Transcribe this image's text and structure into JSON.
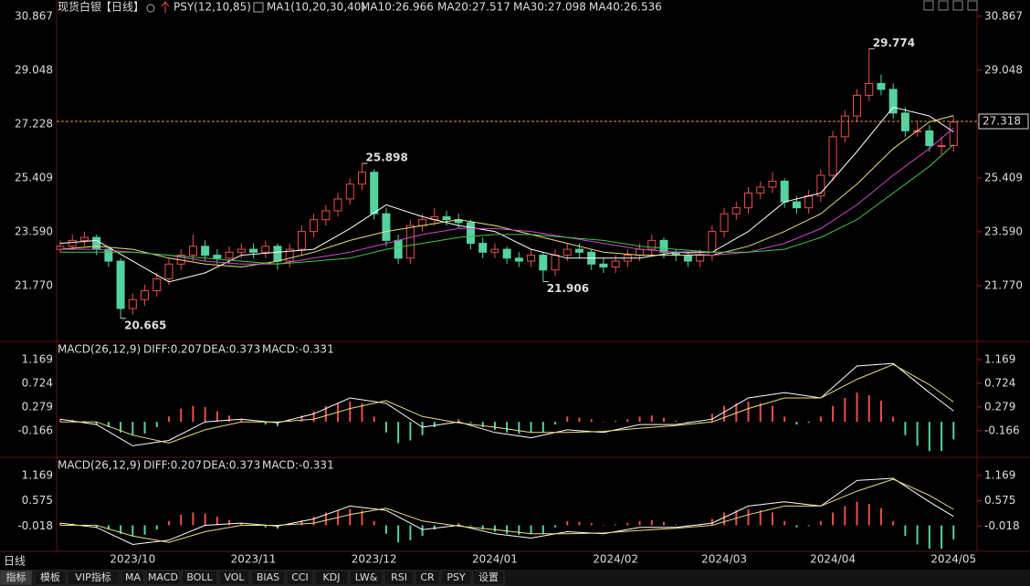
{
  "chart_data": [
    {
      "type": "candlestick",
      "symbol": "现货白银",
      "period_label": "【日线】",
      "indicator": "PSY(12,10,85)",
      "ma_label": "MA1(10,20,30,40)",
      "categories": [
        null,
        null,
        null,
        null,
        null,
        null,
        "2023/10",
        null,
        null,
        null,
        null,
        null,
        null,
        null,
        null,
        null,
        "2023/11",
        null,
        null,
        null,
        null,
        null,
        null,
        null,
        null,
        null,
        "2023/12",
        null,
        null,
        null,
        null,
        null,
        null,
        null,
        null,
        null,
        "2024/01",
        null,
        null,
        null,
        null,
        null,
        null,
        null,
        null,
        null,
        "2024/02",
        null,
        null,
        null,
        null,
        null,
        null,
        null,
        null,
        "2024/03",
        null,
        null,
        null,
        null,
        null,
        null,
        null,
        null,
        "2024/04",
        null,
        null,
        null,
        null,
        null,
        null,
        null,
        null,
        null,
        "2024/05"
      ],
      "ohlc": [
        [
          23.0,
          23.3,
          22.9,
          23.1
        ],
        [
          23.1,
          23.5,
          23.0,
          23.3
        ],
        [
          23.3,
          23.6,
          23.1,
          23.4
        ],
        [
          23.4,
          23.5,
          22.8,
          23.0
        ],
        [
          23.0,
          23.1,
          22.4,
          22.6
        ],
        [
          22.6,
          22.7,
          20.665,
          21.0
        ],
        [
          21.0,
          21.5,
          20.8,
          21.3
        ],
        [
          21.3,
          21.8,
          21.1,
          21.6
        ],
        [
          21.6,
          22.2,
          21.4,
          22.0
        ],
        [
          22.0,
          22.7,
          21.8,
          22.5
        ],
        [
          22.5,
          23.0,
          22.3,
          22.8
        ],
        [
          22.8,
          23.5,
          22.6,
          23.1
        ],
        [
          23.1,
          23.3,
          22.6,
          22.8
        ],
        [
          22.8,
          23.0,
          22.5,
          22.7
        ],
        [
          22.7,
          23.1,
          22.5,
          22.9
        ],
        [
          22.9,
          23.2,
          22.7,
          23.0
        ],
        [
          23.0,
          23.2,
          22.7,
          22.9
        ],
        [
          22.9,
          23.3,
          22.7,
          23.1
        ],
        [
          23.1,
          23.2,
          22.3,
          22.6
        ],
        [
          22.6,
          23.2,
          22.4,
          23.0
        ],
        [
          23.0,
          23.8,
          22.8,
          23.6
        ],
        [
          23.6,
          24.2,
          23.4,
          24.0
        ],
        [
          24.0,
          24.5,
          23.8,
          24.3
        ],
        [
          24.3,
          24.9,
          24.1,
          24.7
        ],
        [
          24.7,
          25.4,
          24.5,
          25.2
        ],
        [
          25.2,
          25.898,
          25.0,
          25.6
        ],
        [
          25.6,
          25.7,
          24.0,
          24.2
        ],
        [
          24.2,
          24.4,
          23.1,
          23.3
        ],
        [
          23.3,
          23.5,
          22.5,
          22.7
        ],
        [
          22.7,
          24.0,
          22.5,
          23.8
        ],
        [
          23.8,
          24.2,
          23.6,
          24.0
        ],
        [
          24.0,
          24.4,
          23.8,
          24.1
        ],
        [
          24.1,
          24.3,
          23.8,
          24.0
        ],
        [
          24.0,
          24.2,
          23.7,
          23.9
        ],
        [
          23.9,
          24.0,
          23.0,
          23.2
        ],
        [
          23.2,
          23.4,
          22.7,
          22.9
        ],
        [
          22.9,
          23.2,
          22.7,
          23.0
        ],
        [
          23.0,
          23.1,
          22.5,
          22.7
        ],
        [
          22.7,
          22.9,
          22.4,
          22.6
        ],
        [
          22.6,
          23.0,
          22.4,
          22.8
        ],
        [
          22.8,
          22.9,
          21.906,
          22.3
        ],
        [
          22.3,
          23.0,
          22.1,
          22.8
        ],
        [
          22.8,
          23.2,
          22.6,
          23.0
        ],
        [
          23.0,
          23.2,
          22.7,
          22.9
        ],
        [
          22.9,
          23.0,
          22.3,
          22.5
        ],
        [
          22.5,
          22.7,
          22.2,
          22.4
        ],
        [
          22.4,
          22.8,
          22.2,
          22.6
        ],
        [
          22.6,
          23.0,
          22.4,
          22.8
        ],
        [
          22.8,
          23.2,
          22.6,
          23.0
        ],
        [
          23.0,
          23.5,
          22.8,
          23.3
        ],
        [
          23.3,
          23.4,
          22.7,
          22.9
        ],
        [
          22.9,
          23.0,
          22.6,
          22.8
        ],
        [
          22.8,
          22.9,
          22.4,
          22.6
        ],
        [
          22.6,
          23.0,
          22.4,
          22.8
        ],
        [
          22.8,
          23.8,
          22.6,
          23.6
        ],
        [
          23.6,
          24.4,
          23.4,
          24.2
        ],
        [
          24.2,
          24.6,
          24.0,
          24.4
        ],
        [
          24.4,
          25.1,
          24.2,
          24.9
        ],
        [
          24.9,
          25.3,
          24.7,
          25.1
        ],
        [
          25.1,
          25.6,
          24.9,
          25.3
        ],
        [
          25.3,
          25.4,
          24.4,
          24.6
        ],
        [
          24.6,
          24.8,
          24.2,
          24.4
        ],
        [
          24.4,
          25.0,
          24.2,
          24.8
        ],
        [
          24.8,
          25.7,
          24.6,
          25.5
        ],
        [
          25.5,
          27.0,
          25.3,
          26.8
        ],
        [
          26.8,
          27.7,
          26.6,
          27.5
        ],
        [
          27.5,
          28.4,
          27.3,
          28.2
        ],
        [
          28.2,
          29.774,
          28.0,
          28.6
        ],
        [
          28.6,
          28.9,
          28.2,
          28.4
        ],
        [
          28.4,
          28.6,
          27.4,
          27.6
        ],
        [
          27.6,
          27.8,
          26.8,
          27.0
        ],
        [
          27.0,
          27.3,
          26.8,
          27.0
        ],
        [
          27.0,
          27.2,
          26.3,
          26.5
        ],
        [
          26.5,
          26.8,
          26.2,
          26.5
        ],
        [
          26.5,
          27.5,
          26.3,
          27.3
        ]
      ],
      "up_color": "#e8504a",
      "down_color": "#54d2a0",
      "series": [
        {
          "name": "MA10:26.966",
          "color": "#ffffff",
          "x": [
            0,
            3,
            6,
            9,
            12,
            15,
            18,
            21,
            24,
            27,
            30,
            33,
            36,
            39,
            42,
            45,
            48,
            51,
            54,
            57,
            60,
            63,
            66,
            69,
            72,
            74
          ],
          "values": [
            23.2,
            23.3,
            22.6,
            21.9,
            22.2,
            22.8,
            22.9,
            23.0,
            23.7,
            24.5,
            24.1,
            23.8,
            23.6,
            23.0,
            22.7,
            22.7,
            22.7,
            22.9,
            22.9,
            23.6,
            24.6,
            24.9,
            26.3,
            27.8,
            27.5,
            26.966
          ]
        },
        {
          "name": "MA20:27.517",
          "color": "#e8e07a",
          "x": [
            0,
            3,
            6,
            9,
            12,
            15,
            18,
            21,
            24,
            27,
            30,
            33,
            36,
            39,
            42,
            45,
            48,
            51,
            54,
            57,
            60,
            63,
            66,
            69,
            72,
            74
          ],
          "values": [
            23.0,
            23.1,
            23.0,
            22.7,
            22.5,
            22.4,
            22.6,
            22.9,
            23.3,
            23.6,
            23.8,
            24.0,
            23.8,
            23.5,
            23.2,
            22.9,
            22.8,
            22.8,
            22.8,
            23.1,
            23.6,
            24.2,
            25.2,
            26.4,
            27.3,
            27.517
          ]
        },
        {
          "name": "MA30:27.098",
          "color": "#d048d0",
          "x": [
            0,
            3,
            6,
            9,
            12,
            15,
            18,
            21,
            24,
            27,
            30,
            33,
            36,
            39,
            42,
            45,
            48,
            51,
            54,
            57,
            60,
            63,
            66,
            69,
            72,
            74
          ],
          "values": [
            23.0,
            23.0,
            22.9,
            22.8,
            22.6,
            22.5,
            22.5,
            22.7,
            22.9,
            23.2,
            23.5,
            23.7,
            23.7,
            23.6,
            23.4,
            23.2,
            23.0,
            22.9,
            22.8,
            22.9,
            23.2,
            23.7,
            24.5,
            25.5,
            26.4,
            27.098
          ]
        },
        {
          "name": "MA40:26.536",
          "color": "#40c848",
          "x": [
            0,
            3,
            6,
            9,
            12,
            15,
            18,
            21,
            24,
            27,
            30,
            33,
            36,
            39,
            42,
            45,
            48,
            51,
            54,
            57,
            60,
            63,
            66,
            69,
            72,
            74
          ],
          "values": [
            22.9,
            22.9,
            22.9,
            22.8,
            22.7,
            22.6,
            22.5,
            22.6,
            22.7,
            23.0,
            23.2,
            23.4,
            23.5,
            23.5,
            23.4,
            23.3,
            23.1,
            23.0,
            22.9,
            22.9,
            23.0,
            23.4,
            24.0,
            24.9,
            25.8,
            26.536
          ]
        }
      ],
      "annotations": [
        {
          "x": 67,
          "y": 29.774,
          "color": "#e8504a"
        },
        {
          "x": 25,
          "y": 25.898,
          "color": "#e8504a"
        },
        {
          "x": 40,
          "y": 21.906,
          "color": "#54d2a0"
        },
        {
          "x": 5,
          "y": 20.665,
          "color": "#54d2a0"
        }
      ],
      "last": 27.318,
      "last_color": "#e89a3c",
      "ylim": [
        19.92,
        31.11
      ],
      "yticks": [
        30.867,
        29.048,
        27.228,
        25.409,
        {
          "value": 23.59,
          "label": "23.590"
        },
        {
          "value": 21.77,
          "label": "21.770"
        }
      ],
      "grid": false
    },
    {
      "type": "macd",
      "title": "MACD(26,12,9)",
      "up_color": "#e8504a",
      "down_color": "#54d2a0",
      "histogram": {
        "name": "MACD:-0.331",
        "color": "#d048d0",
        "values": [
          0.05,
          0.04,
          0.02,
          -0.05,
          -0.1,
          -0.2,
          -0.25,
          -0.22,
          -0.1,
          0.1,
          0.25,
          0.3,
          0.28,
          0.2,
          0.12,
          0.05,
          0.0,
          -0.05,
          -0.08,
          0.05,
          0.12,
          0.2,
          0.3,
          0.35,
          0.38,
          0.35,
          0.1,
          -0.2,
          -0.4,
          -0.35,
          -0.25,
          -0.1,
          0.0,
          0.05,
          -0.02,
          -0.1,
          -0.15,
          -0.2,
          -0.22,
          -0.2,
          -0.2,
          -0.05,
          0.1,
          0.08,
          0.05,
          0.0,
          0.02,
          0.05,
          0.1,
          0.12,
          0.08,
          0.02,
          -0.02,
          0.0,
          0.15,
          0.3,
          0.35,
          0.38,
          0.35,
          0.3,
          0.1,
          -0.05,
          -0.02,
          0.1,
          0.3,
          0.45,
          0.55,
          0.5,
          0.4,
          0.1,
          -0.25,
          -0.45,
          -0.55,
          -0.55,
          -0.331
        ]
      },
      "series": [
        {
          "name": "DIFF:0.207",
          "color": "#ffffff",
          "x": [
            0,
            3,
            6,
            9,
            12,
            15,
            18,
            21,
            24,
            27,
            30,
            33,
            36,
            39,
            42,
            45,
            48,
            51,
            54,
            57,
            60,
            63,
            66,
            69,
            72,
            74
          ],
          "values": [
            0.05,
            -0.05,
            -0.45,
            -0.35,
            0.0,
            0.05,
            -0.02,
            0.15,
            0.45,
            0.35,
            -0.1,
            0.0,
            -0.2,
            -0.3,
            -0.15,
            -0.2,
            -0.05,
            -0.05,
            0.05,
            0.45,
            0.55,
            0.45,
            1.05,
            1.1,
            0.55,
            0.207
          ]
        },
        {
          "name": "DEA:0.373",
          "color": "#e8e07a",
          "x": [
            0,
            3,
            6,
            9,
            12,
            15,
            18,
            21,
            24,
            27,
            30,
            33,
            36,
            39,
            42,
            45,
            48,
            51,
            54,
            57,
            60,
            63,
            66,
            69,
            72,
            74
          ],
          "values": [
            0.0,
            0.0,
            -0.25,
            -0.4,
            -0.15,
            0.0,
            0.0,
            0.05,
            0.25,
            0.4,
            0.1,
            -0.02,
            -0.1,
            -0.2,
            -0.2,
            -0.18,
            -0.12,
            -0.07,
            0.0,
            0.25,
            0.45,
            0.45,
            0.8,
            1.08,
            0.7,
            0.373
          ]
        }
      ],
      "ylim": [
        -0.65,
        1.48
      ],
      "yticks": [
        1.169,
        0.724,
        0.279,
        -0.166
      ]
    },
    {
      "type": "macd",
      "ylim": [
        -0.61,
        1.55
      ],
      "yticks": [
        1.169,
        0.575,
        -0.018
      ]
    }
  ],
  "toolbar": {
    "period": "日线",
    "tabs": [
      "指标",
      "模板",
      "VIP指标",
      "MA",
      "MACD",
      "BOLL",
      "VOL",
      "BIAS",
      "CCI",
      "KDJ",
      "LW&",
      "RSI",
      "CR",
      "PSY",
      "设置"
    ]
  }
}
